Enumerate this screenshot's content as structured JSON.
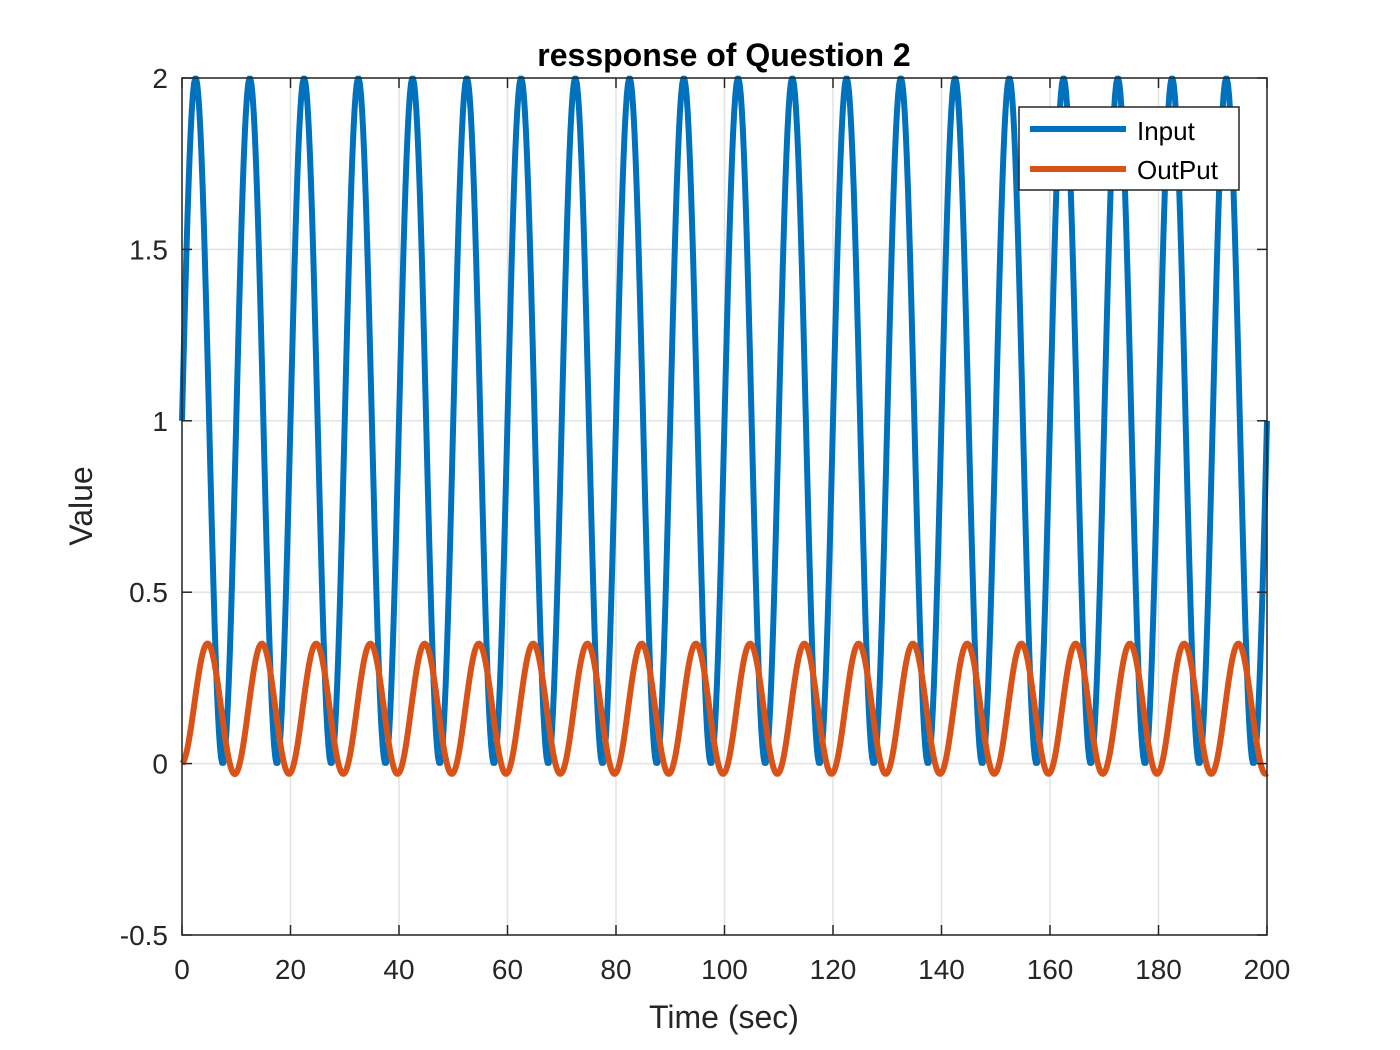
{
  "colors": {
    "input": "#0072BD",
    "output": "#D95319",
    "grid": "#e3e3e3",
    "axis": "#262626",
    "background": "#ffffff"
  },
  "chart_data": {
    "type": "line",
    "title": "ressponse of Question 2",
    "xlabel": "Time (sec)",
    "ylabel": "Value",
    "xlim": [
      0,
      200
    ],
    "ylim": [
      -0.5,
      2
    ],
    "xticks": [
      0,
      20,
      40,
      60,
      80,
      100,
      120,
      140,
      160,
      180,
      200
    ],
    "yticks": [
      -0.5,
      0,
      0.5,
      1,
      1.5,
      2
    ],
    "xtick_labels": [
      "0",
      "20",
      "40",
      "60",
      "80",
      "100",
      "120",
      "140",
      "160",
      "180",
      "200"
    ],
    "ytick_labels": [
      "-0.5",
      "0",
      "0.5",
      "1",
      "1.5",
      "2"
    ],
    "grid": true,
    "legend_position": "top-right",
    "series": [
      {
        "name": "Input",
        "description_of_curve": "1 + sin(2*pi*t/10)",
        "samples": {
          "t": [
            0,
            2.5,
            5,
            7.5,
            10,
            12.5,
            15,
            17.5,
            20,
            22.5,
            25,
            27.5,
            30,
            32.5,
            35,
            37.5,
            40,
            42.5,
            45,
            47.5,
            50,
            52.5,
            55,
            57.5,
            60,
            62.5,
            65,
            67.5,
            70,
            72.5,
            75,
            77.5,
            80,
            82.5,
            85,
            87.5,
            90,
            92.5,
            95,
            97.5,
            100,
            102.5,
            105,
            107.5,
            110,
            112.5,
            115,
            117.5,
            120,
            122.5,
            125,
            127.5,
            130,
            132.5,
            135,
            137.5,
            140,
            142.5,
            145,
            147.5,
            150,
            152.5,
            155,
            157.5,
            160,
            162.5,
            165,
            167.5,
            170,
            172.5,
            175,
            177.5,
            180,
            182.5,
            185,
            187.5,
            190,
            192.5,
            195,
            197.5,
            200
          ],
          "y": [
            1,
            2,
            1,
            0,
            1,
            2,
            1,
            0,
            1,
            2,
            1,
            0,
            1,
            2,
            1,
            0,
            1,
            2,
            1,
            0,
            1,
            2,
            1,
            0,
            1,
            2,
            1,
            0,
            1,
            2,
            1,
            0,
            1,
            2,
            1,
            0,
            1,
            2,
            1,
            0,
            1,
            2,
            1,
            0,
            1,
            2,
            1,
            0,
            1,
            2,
            1,
            0,
            1,
            2,
            1,
            0,
            1,
            2,
            1,
            0,
            1,
            2,
            1,
            0,
            1,
            2,
            1,
            0,
            1,
            2,
            1,
            0,
            1,
            2,
            1,
            0,
            1,
            2,
            1,
            0,
            1
          ]
        },
        "period": 10,
        "offset": 1,
        "amplitude": 1
      },
      {
        "name": "OutPut",
        "first_peak": {
          "t": 3,
          "y": 0.43
        },
        "steady_peak": 0.35,
        "steady_trough": -0.03,
        "start_value": 0,
        "end_value": 0.08,
        "period": 10
      }
    ]
  }
}
